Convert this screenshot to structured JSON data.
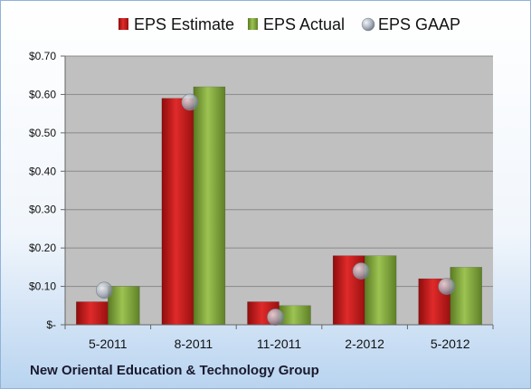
{
  "chart_data": {
    "type": "bar",
    "categories": [
      "5-2011",
      "8-2011",
      "11-2011",
      "2-2012",
      "5-2012"
    ],
    "series": [
      {
        "name": "EPS Estimate",
        "values": [
          0.06,
          0.59,
          0.06,
          0.18,
          0.12
        ],
        "color": "#cc1f1f"
      },
      {
        "name": "EPS Actual",
        "values": [
          0.1,
          0.62,
          0.05,
          0.18,
          0.15
        ],
        "color": "#7ea33a"
      }
    ],
    "markers": {
      "name": "EPS GAAP",
      "values": [
        0.09,
        0.58,
        0.02,
        0.14,
        0.1
      ],
      "color": "#a9b1bd"
    },
    "ylim": [
      0,
      0.7
    ],
    "yticks": [
      0,
      0.1,
      0.2,
      0.3,
      0.4,
      0.5,
      0.6,
      0.7
    ],
    "ytick_labels": [
      "$-",
      "$0.10",
      "$0.20",
      "$0.30",
      "$0.40",
      "$0.50",
      "$0.60",
      "$0.70"
    ],
    "grid": true,
    "legend": "top",
    "plot_background": "#c0c0c0"
  },
  "company": "New Oriental Education & Technology Group"
}
